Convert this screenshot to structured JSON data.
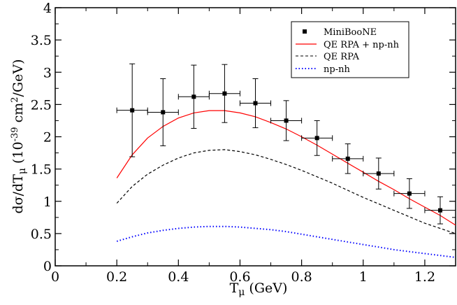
{
  "chart_data": {
    "type": "line",
    "title": "",
    "xlabel": {
      "main": "T",
      "sub": "μ",
      "unit": " (GeV)"
    },
    "ylabel": {
      "p1": "dσ/dT",
      "sub": "μ",
      "p2": " (10",
      "sup1": "-39",
      "p3": " cm",
      "sup2": "2",
      "p4": "/GeV)"
    },
    "xlim": [
      0,
      1.3
    ],
    "ylim": [
      0,
      4
    ],
    "xticks": [
      0,
      0.2,
      0.4,
      0.6,
      0.8,
      1,
      1.2
    ],
    "xtick_labels": [
      "0",
      "0.2",
      "0.4",
      "0.6",
      "0.8",
      "1",
      "1.2"
    ],
    "yticks": [
      0,
      0.5,
      1,
      1.5,
      2,
      2.5,
      3,
      3.5,
      4
    ],
    "ytick_labels": [
      "0",
      "0.5",
      "1",
      "1.5",
      "2",
      "2.5",
      "3",
      "3.5",
      "4"
    ],
    "grid": false,
    "legend_position": "top-right",
    "points": {
      "name": "MiniBooNE",
      "color": "#000000",
      "x": [
        0.25,
        0.35,
        0.45,
        0.55,
        0.65,
        0.75,
        0.85,
        0.95,
        1.05,
        1.15,
        1.25
      ],
      "y": [
        2.41,
        2.38,
        2.62,
        2.67,
        2.52,
        2.25,
        1.98,
        1.66,
        1.43,
        1.12,
        0.86
      ],
      "yerr": [
        0.72,
        0.52,
        0.49,
        0.45,
        0.38,
        0.31,
        0.27,
        0.23,
        0.24,
        0.23,
        0.21
      ],
      "xerr": 0.05
    },
    "series": [
      {
        "name": "QE RPA + np-nh",
        "color": "#ff0000",
        "dash": "solid",
        "x": [
          0.2,
          0.25,
          0.3,
          0.35,
          0.4,
          0.45,
          0.5,
          0.55,
          0.6,
          0.65,
          0.7,
          0.75,
          0.8,
          0.85,
          0.9,
          0.95,
          1.0,
          1.05,
          1.1,
          1.15,
          1.2,
          1.25,
          1.3
        ],
        "y": [
          1.36,
          1.72,
          1.98,
          2.16,
          2.29,
          2.37,
          2.405,
          2.405,
          2.37,
          2.31,
          2.22,
          2.12,
          2.0,
          1.87,
          1.73,
          1.59,
          1.45,
          1.31,
          1.18,
          1.04,
          0.91,
          0.78,
          0.63
        ]
      },
      {
        "name": "QE RPA",
        "color": "#000000",
        "dash": "dashed",
        "x": [
          0.2,
          0.25,
          0.3,
          0.35,
          0.4,
          0.45,
          0.5,
          0.55,
          0.6,
          0.65,
          0.7,
          0.75,
          0.8,
          0.85,
          0.9,
          0.95,
          1.0,
          1.05,
          1.1,
          1.15,
          1.2,
          1.25,
          1.3
        ],
        "y": [
          0.97,
          1.23,
          1.42,
          1.56,
          1.67,
          1.75,
          1.79,
          1.8,
          1.77,
          1.72,
          1.65,
          1.57,
          1.48,
          1.38,
          1.28,
          1.17,
          1.06,
          0.96,
          0.86,
          0.76,
          0.66,
          0.58,
          0.5
        ]
      },
      {
        "name": "np-nh",
        "color": "#0000ff",
        "dash": "dotted",
        "x": [
          0.2,
          0.25,
          0.3,
          0.35,
          0.4,
          0.45,
          0.5,
          0.55,
          0.6,
          0.65,
          0.7,
          0.75,
          0.8,
          0.85,
          0.9,
          0.95,
          1.0,
          1.05,
          1.1,
          1.15,
          1.2,
          1.25,
          1.3
        ],
        "y": [
          0.38,
          0.45,
          0.51,
          0.55,
          0.58,
          0.6,
          0.61,
          0.61,
          0.6,
          0.58,
          0.56,
          0.53,
          0.49,
          0.45,
          0.41,
          0.37,
          0.33,
          0.29,
          0.25,
          0.22,
          0.19,
          0.16,
          0.13
        ]
      }
    ],
    "legend": [
      {
        "label": "MiniBooNE",
        "kind": "marker",
        "color": "#000000"
      },
      {
        "label": "QE RPA + np-nh",
        "kind": "solid",
        "color": "#ff0000"
      },
      {
        "label": "QE RPA",
        "kind": "dashed",
        "color": "#000000"
      },
      {
        "label": "np-nh",
        "kind": "dotted",
        "color": "#0000ff"
      }
    ]
  }
}
